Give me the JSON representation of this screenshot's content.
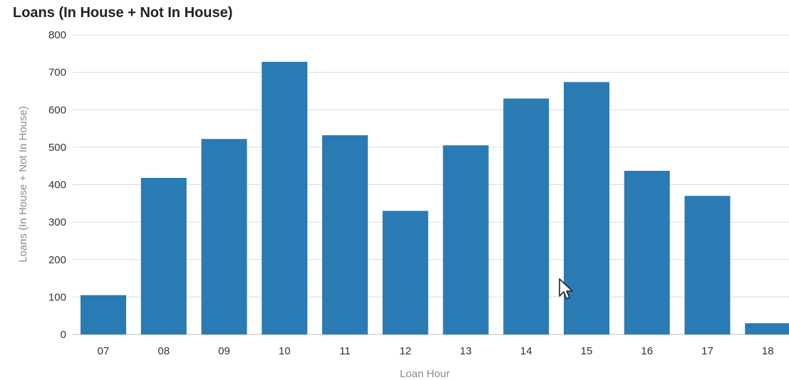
{
  "chart_data": {
    "type": "bar",
    "title": "Loans (In House + Not In House)",
    "xlabel": "Loan Hour",
    "ylabel": "Loans (In House + Not In House)",
    "categories": [
      "07",
      "08",
      "09",
      "10",
      "11",
      "12",
      "13",
      "14",
      "15",
      "16",
      "17",
      "18"
    ],
    "values": [
      105,
      418,
      522,
      728,
      532,
      330,
      505,
      630,
      674,
      437,
      370,
      30
    ],
    "ylim": [
      0,
      800
    ],
    "yticks": [
      0,
      100,
      200,
      300,
      400,
      500,
      600,
      700,
      800
    ],
    "grid": true,
    "colors": {
      "bar": "#2a7ab4",
      "grid": "#dcdcdc"
    }
  },
  "cursor": {
    "icon": "mouse-pointer-icon"
  }
}
